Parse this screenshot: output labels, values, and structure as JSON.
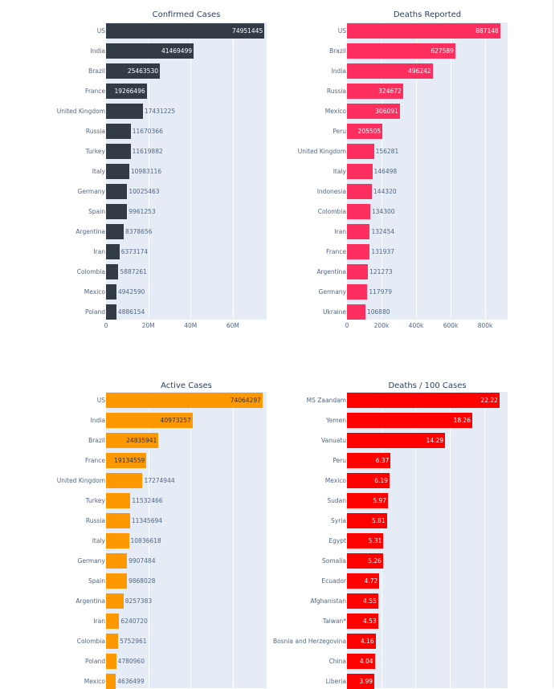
{
  "chart_data": [
    {
      "type": "bar",
      "orientation": "horizontal",
      "title": "Confirmed Cases",
      "color": "#333b47",
      "value_format": "int",
      "xlim": [
        0,
        76000000
      ],
      "xticks": [
        0,
        20000000,
        40000000,
        60000000
      ],
      "xtick_labels": [
        "0",
        "20M",
        "40M",
        "60M"
      ],
      "categories": [
        "US",
        "India",
        "Brazil",
        "France",
        "United Kingdom",
        "Russia",
        "Turkey",
        "Italy",
        "Germany",
        "Spain",
        "Argentina",
        "Iran",
        "Colombia",
        "Mexico",
        "Poland"
      ],
      "values": [
        74951445,
        41469499,
        25463530,
        19266496,
        17431225,
        11670366,
        11619882,
        10983116,
        10025463,
        9961253,
        8378656,
        6373174,
        5887261,
        4942590,
        4886154
      ]
    },
    {
      "type": "bar",
      "orientation": "horizontal",
      "title": "Deaths Reported",
      "color": "#fe2f5e",
      "value_format": "int",
      "xlim": [
        0,
        930000
      ],
      "xticks": [
        0,
        200000,
        400000,
        600000,
        800000
      ],
      "xtick_labels": [
        "0",
        "200k",
        "400k",
        "600k",
        "800k"
      ],
      "categories": [
        "US",
        "Brazil",
        "India",
        "Russia",
        "Mexico",
        "Peru",
        "United Kingdom",
        "Italy",
        "Indonesia",
        "Colombia",
        "Iran",
        "France",
        "Argentina",
        "Germany",
        "Ukraine"
      ],
      "values": [
        887148,
        627589,
        496242,
        324672,
        306091,
        205505,
        156281,
        146498,
        144320,
        134300,
        132454,
        131937,
        121273,
        117979,
        106880
      ]
    },
    {
      "type": "bar",
      "orientation": "horizontal",
      "title": "Active Cases",
      "color": "#fe9800",
      "value_format": "int",
      "xlim": [
        0,
        76000000
      ],
      "xticks": [
        20000000,
        40000000,
        60000000
      ],
      "xtick_labels": [],
      "categories": [
        "US",
        "India",
        "Brazil",
        "France",
        "United Kingdom",
        "Turkey",
        "Russia",
        "Italy",
        "Germany",
        "Spain",
        "Argentina",
        "Iran",
        "Colombia",
        "Poland",
        "Mexico"
      ],
      "values": [
        74064297,
        40973257,
        24835941,
        19134559,
        17274944,
        11532466,
        11345694,
        10836618,
        9907484,
        9868028,
        8257383,
        6240720,
        5752961,
        4780960,
        4636499
      ]
    },
    {
      "type": "bar",
      "orientation": "horizontal",
      "title": "Deaths / 100 Cases",
      "color": "#ff0000",
      "value_format": "fixed2",
      "xlim": [
        0,
        23.4
      ],
      "xticks": [
        5,
        10,
        15,
        20
      ],
      "xtick_labels": [],
      "categories": [
        "MS Zaandam",
        "Yemen",
        "Vanuatu",
        "Peru",
        "Mexico",
        "Sudan",
        "Syria",
        "Egypt",
        "Somalia",
        "Ecuador",
        "Afghanistan",
        "Taiwan*",
        "Bosnia and Herzegovina",
        "China",
        "Liberia"
      ],
      "values": [
        22.22,
        18.26,
        14.29,
        6.37,
        6.19,
        5.97,
        5.81,
        5.31,
        5.26,
        4.72,
        4.55,
        4.53,
        4.16,
        4.04,
        3.99
      ]
    }
  ]
}
